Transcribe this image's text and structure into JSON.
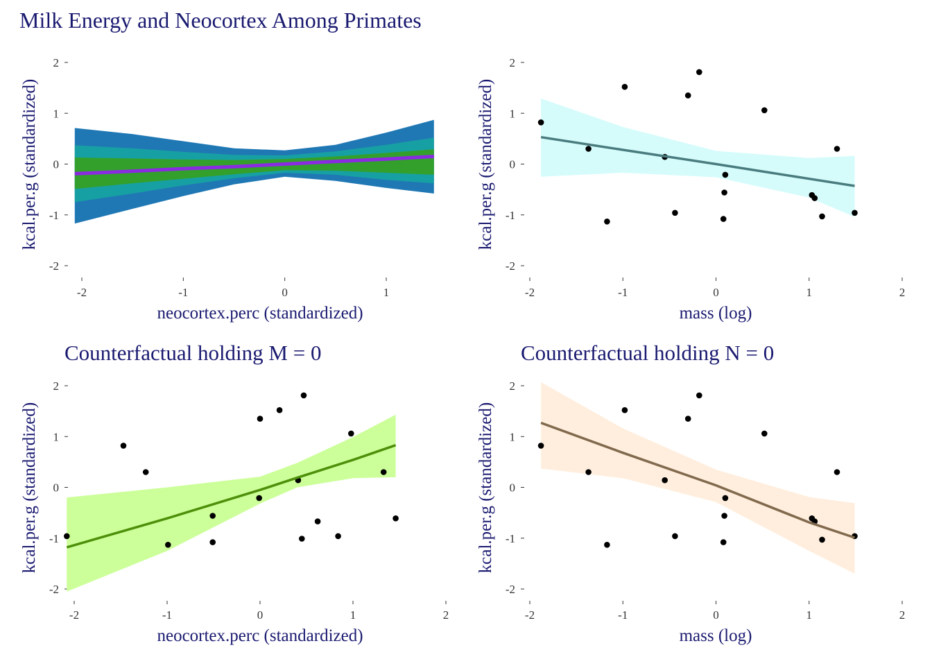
{
  "figure_title": "Milk Energy and Neocortex Among Primates",
  "colors": {
    "title": "#191970",
    "tick_text": "#333333",
    "points": "#000000",
    "band_outer": "#1f78b4",
    "band_mid": "#17a0a3",
    "band_inner": "#33a02c",
    "posterior_line": "#8a2be2",
    "mass_ribbon": "#d5fcfb",
    "mass_line": "#4a7c7f",
    "cf_m_ribbon": "#ccff99",
    "cf_m_line": "#4d8f0a",
    "cf_n_ribbon": "#ffeedd",
    "cf_n_line": "#80694d"
  },
  "chart_data": [
    {
      "type": "area",
      "title": "",
      "xlabel": "neocortex.perc (standardized)",
      "ylabel": "kcal.per.g (standardized)",
      "xlim": [
        -2.1,
        1.45
      ],
      "ylim": [
        -2,
        2
      ],
      "xticks": [
        -2,
        -1,
        0,
        1
      ],
      "yticks": [
        -2,
        -1,
        0,
        1,
        2
      ],
      "grid": false,
      "x": [
        -2.07,
        -1.5,
        -1.0,
        -0.5,
        0.0,
        0.5,
        1.0,
        1.47
      ],
      "mean": [
        -0.19,
        -0.14,
        -0.09,
        -0.05,
        0.0,
        0.05,
        0.1,
        0.15
      ],
      "band_outer": {
        "lower": [
          -1.17,
          -0.88,
          -0.63,
          -0.4,
          -0.25,
          -0.33,
          -0.47,
          -0.58
        ],
        "upper": [
          0.71,
          0.59,
          0.45,
          0.31,
          0.27,
          0.38,
          0.62,
          0.87
        ]
      },
      "band_mid": {
        "lower": [
          -0.75,
          -0.58,
          -0.42,
          -0.28,
          -0.17,
          -0.21,
          -0.31,
          -0.38
        ],
        "upper": [
          0.37,
          0.31,
          0.24,
          0.18,
          0.17,
          0.25,
          0.38,
          0.52
        ]
      },
      "band_inner": {
        "lower": [
          -0.49,
          -0.38,
          -0.29,
          -0.2,
          -0.12,
          -0.13,
          -0.17,
          -0.21
        ],
        "upper": [
          0.13,
          0.11,
          0.09,
          0.08,
          0.1,
          0.15,
          0.22,
          0.29
        ]
      }
    },
    {
      "type": "scatter",
      "title": "",
      "xlabel": "mass (log)",
      "ylabel": "kcal.per.g (standardized)",
      "xlim": [
        -2,
        2
      ],
      "ylim": [
        -2,
        2
      ],
      "xticks": [
        -2,
        -1,
        0,
        1,
        2
      ],
      "yticks": [
        -2,
        -1,
        0,
        1,
        2
      ],
      "grid": false,
      "points": {
        "x": [
          -1.88,
          -1.37,
          -1.17,
          -0.98,
          -0.55,
          -0.44,
          -0.3,
          -0.18,
          0.08,
          0.09,
          0.1,
          0.52,
          1.03,
          1.06,
          1.14,
          1.3,
          1.49
        ],
        "y": [
          0.82,
          0.3,
          -1.13,
          1.52,
          0.14,
          -0.96,
          1.35,
          1.81,
          -1.08,
          -0.56,
          -0.21,
          1.06,
          -0.61,
          -0.67,
          -1.03,
          0.3,
          -0.96
        ]
      },
      "fit": {
        "x": [
          -1.88,
          -1.0,
          0.0,
          1.0,
          1.49
        ],
        "mean": [
          0.53,
          0.28,
          0.0,
          -0.29,
          -0.43
        ],
        "lower": [
          -0.25,
          -0.17,
          -0.26,
          -0.66,
          -1.04
        ],
        "upper": [
          1.29,
          0.73,
          0.26,
          0.12,
          0.16
        ]
      }
    },
    {
      "type": "scatter",
      "title": "Counterfactual holding M = 0",
      "xlabel": "neocortex.perc (standardized)",
      "ylabel": "kcal.per.g (standardized)",
      "xlim": [
        -2.1,
        2
      ],
      "ylim": [
        -2,
        2
      ],
      "xticks": [
        -2,
        -1,
        0,
        1,
        2
      ],
      "yticks": [
        -2,
        -1,
        0,
        1,
        2
      ],
      "grid": false,
      "points": {
        "x": [
          -2.08,
          -1.47,
          -1.23,
          -0.99,
          -0.51,
          -0.51,
          -0.01,
          0.0,
          0.21,
          0.41,
          0.45,
          0.47,
          0.62,
          0.84,
          0.98,
          1.33,
          1.46
        ],
        "y": [
          -0.96,
          0.82,
          0.3,
          -1.13,
          -0.56,
          -1.08,
          -0.21,
          1.35,
          1.52,
          0.14,
          -1.01,
          1.81,
          -0.67,
          -0.96,
          1.06,
          0.3,
          -0.61
        ]
      },
      "fit": {
        "x": [
          -2.08,
          -1.0,
          0.0,
          0.4,
          1.0,
          1.46
        ],
        "mean": [
          -1.18,
          -0.61,
          -0.05,
          0.19,
          0.54,
          0.83
        ],
        "lower": [
          -2.05,
          -1.25,
          -0.32,
          0.0,
          0.18,
          0.2
        ],
        "upper": [
          -0.2,
          0.0,
          0.21,
          0.48,
          0.99,
          1.43
        ]
      }
    },
    {
      "type": "scatter",
      "title": "Counterfactual holding N = 0",
      "xlabel": "mass (log)",
      "ylabel": "kcal.per.g (standardized)",
      "xlim": [
        -2,
        2
      ],
      "ylim": [
        -2,
        2
      ],
      "xticks": [
        -2,
        -1,
        0,
        1,
        2
      ],
      "yticks": [
        -2,
        -1,
        0,
        1,
        2
      ],
      "grid": false,
      "points": {
        "x": [
          -1.88,
          -1.37,
          -1.17,
          -0.98,
          -0.55,
          -0.44,
          -0.3,
          -0.18,
          0.08,
          0.09,
          0.1,
          0.52,
          1.03,
          1.06,
          1.14,
          1.3,
          1.49
        ],
        "y": [
          0.82,
          0.3,
          -1.13,
          1.52,
          0.14,
          -0.96,
          1.35,
          1.81,
          -1.08,
          -0.56,
          -0.21,
          1.06,
          -0.61,
          -0.67,
          -1.03,
          0.3,
          -0.96
        ]
      },
      "fit": {
        "x": [
          -1.88,
          -1.0,
          0.0,
          1.0,
          1.49
        ],
        "mean": [
          1.27,
          0.68,
          0.04,
          -0.69,
          -0.99
        ],
        "lower": [
          0.37,
          0.18,
          -0.29,
          -1.25,
          -1.7
        ],
        "upper": [
          2.07,
          1.16,
          0.35,
          -0.19,
          -0.31
        ]
      }
    }
  ]
}
